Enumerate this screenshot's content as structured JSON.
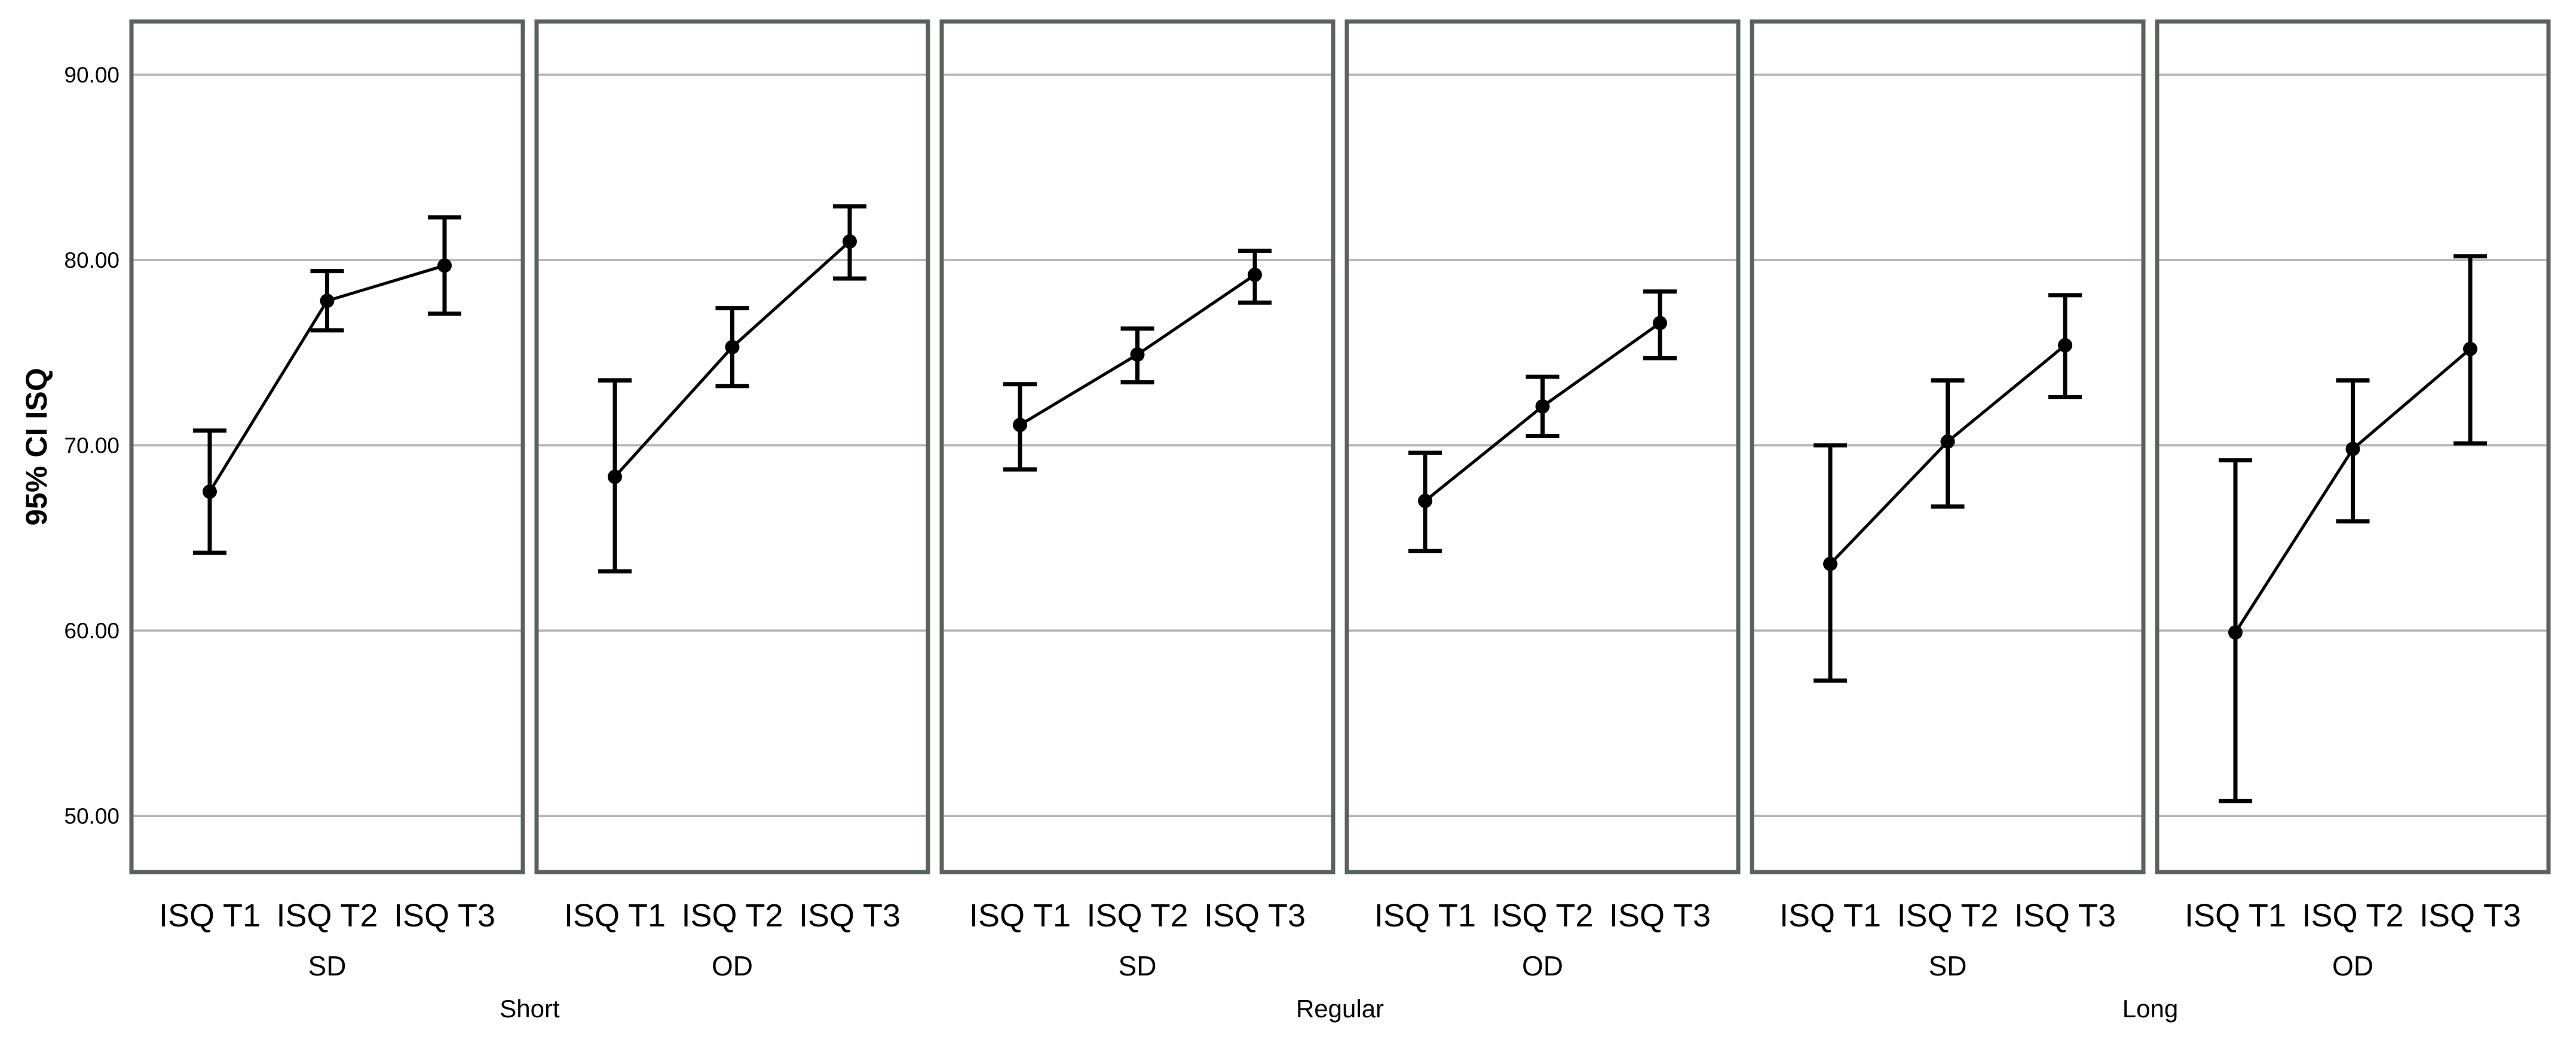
{
  "chart_data": {
    "type": "line",
    "title": "",
    "xlabel": "",
    "ylabel": "95% CI ISQ",
    "grid": true,
    "error_bars": "95% CI",
    "marker": "filled-circle",
    "ylim": [
      46.97,
      92.87
    ],
    "yticks": {
      "values": [
        90,
        80,
        70,
        60,
        50
      ],
      "labels": [
        "90.00",
        "80.00",
        "70.00",
        "60.00",
        "50.00"
      ]
    },
    "categories": [
      "ISQ T1",
      "ISQ T2",
      "ISQ T3"
    ],
    "group_labels": [
      "Short",
      "Regular",
      "Long"
    ],
    "panels": [
      {
        "group": "Short",
        "diameter": "SD",
        "means": [
          67.5,
          77.8,
          79.7
        ],
        "ci_low": [
          64.2,
          76.2,
          77.1
        ],
        "ci_high": [
          70.8,
          79.4,
          82.3
        ]
      },
      {
        "group": "Short",
        "diameter": "OD",
        "means": [
          68.3,
          75.3,
          81.0
        ],
        "ci_low": [
          63.2,
          73.2,
          79.0
        ],
        "ci_high": [
          73.5,
          77.4,
          82.9
        ]
      },
      {
        "group": "Regular",
        "diameter": "SD",
        "means": [
          71.1,
          74.9,
          79.2
        ],
        "ci_low": [
          68.7,
          73.4,
          77.7
        ],
        "ci_high": [
          73.3,
          76.3,
          80.5
        ]
      },
      {
        "group": "Regular",
        "diameter": "OD",
        "means": [
          67.0,
          72.1,
          76.6
        ],
        "ci_low": [
          64.3,
          70.5,
          74.7
        ],
        "ci_high": [
          69.6,
          73.7,
          78.3
        ]
      },
      {
        "group": "Long",
        "diameter": "SD",
        "means": [
          63.6,
          70.2,
          75.4
        ],
        "ci_low": [
          57.3,
          66.7,
          72.6
        ],
        "ci_high": [
          70.0,
          73.5,
          78.1
        ]
      },
      {
        "group": "Long",
        "diameter": "OD",
        "means": [
          59.9,
          69.8,
          75.2
        ],
        "ci_low": [
          50.8,
          65.9,
          70.1
        ],
        "ci_high": [
          69.2,
          73.5,
          80.2
        ]
      }
    ],
    "colors": {
      "frame": "#59635d",
      "gridline": "#b3b3b3",
      "data": "#000000",
      "background": "#ffffff"
    }
  }
}
